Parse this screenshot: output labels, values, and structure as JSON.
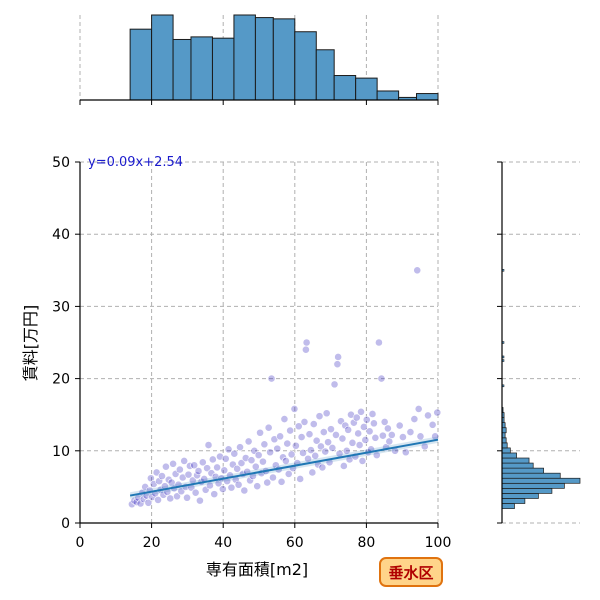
{
  "chart_data": {
    "type": "scatter",
    "xlabel": "専有面積[m2]",
    "ylabel": "賃料[万円]",
    "xlim": [
      0,
      100
    ],
    "ylim": [
      0,
      50
    ],
    "xticks": [
      0,
      20,
      40,
      60,
      80,
      100
    ],
    "yticks": [
      0,
      10,
      20,
      30,
      40,
      50
    ],
    "grid": true,
    "annotation": "y=0.09x+2.54",
    "badge": "垂水区",
    "regression": {
      "slope": 0.09,
      "intercept": 2.54,
      "x_range": [
        14,
        100
      ]
    },
    "point_color": "#3a2fc0",
    "line_color": "#1f77b4",
    "hist_color": "#5599c7",
    "x_hist": {
      "bins": [
        [
          14,
          20
        ],
        [
          20,
          26
        ],
        [
          26,
          31
        ],
        [
          31,
          37
        ],
        [
          37,
          43
        ],
        [
          43,
          49
        ],
        [
          49,
          54
        ],
        [
          54,
          60
        ],
        [
          60,
          66
        ],
        [
          66,
          71
        ],
        [
          71,
          77
        ],
        [
          77,
          83
        ],
        [
          83,
          89
        ],
        [
          89,
          94
        ],
        [
          94,
          100
        ]
      ],
      "counts": [
        55,
        66,
        47,
        49,
        48,
        66,
        64,
        63,
        53,
        39,
        19,
        17,
        7,
        2,
        5
      ]
    },
    "y_hist": {
      "bins": [
        [
          2,
          2.7
        ],
        [
          2.7,
          3.4
        ],
        [
          3.4,
          4.1
        ],
        [
          4.1,
          4.8
        ],
        [
          4.8,
          5.5
        ],
        [
          5.5,
          6.2
        ],
        [
          6.2,
          6.9
        ],
        [
          6.9,
          7.6
        ],
        [
          7.6,
          8.3
        ],
        [
          8.3,
          9.0
        ],
        [
          9.0,
          9.7
        ],
        [
          9.7,
          10.4
        ],
        [
          10.4,
          11.1
        ],
        [
          11.1,
          11.8
        ],
        [
          11.8,
          12.5
        ],
        [
          12.5,
          13.2
        ],
        [
          13.2,
          13.9
        ],
        [
          13.9,
          14.6
        ],
        [
          14.6,
          15.3
        ],
        [
          15.3,
          16
        ]
      ],
      "counts": [
        12,
        22,
        35,
        48,
        60,
        75,
        56,
        40,
        30,
        26,
        14,
        8,
        5,
        4,
        3,
        4,
        3,
        2,
        2,
        1
      ]
    },
    "y_hist_outliers": [
      19,
      22.5,
      23,
      25,
      35
    ],
    "points": [
      [
        14.5,
        2.6
      ],
      [
        15.2,
        3.1
      ],
      [
        15.8,
        2.9
      ],
      [
        16.3,
        3.5
      ],
      [
        16.9,
        2.7
      ],
      [
        17.4,
        4.2
      ],
      [
        17.8,
        3.3
      ],
      [
        18.2,
        5.0
      ],
      [
        18.6,
        3.8
      ],
      [
        19.1,
        2.8
      ],
      [
        19.5,
        4.5
      ],
      [
        19.8,
        6.2
      ],
      [
        20.2,
        3.6
      ],
      [
        20.6,
        5.4
      ],
      [
        21.0,
        4.1
      ],
      [
        21.4,
        7.0
      ],
      [
        21.8,
        3.2
      ],
      [
        22.1,
        5.8
      ],
      [
        22.5,
        4.6
      ],
      [
        22.9,
        6.5
      ],
      [
        23.3,
        3.9
      ],
      [
        23.7,
        5.1
      ],
      [
        24.0,
        7.8
      ],
      [
        24.4,
        4.3
      ],
      [
        24.8,
        6.0
      ],
      [
        25.2,
        3.4
      ],
      [
        25.6,
        5.6
      ],
      [
        26.0,
        8.2
      ],
      [
        26.3,
        4.8
      ],
      [
        26.7,
        6.8
      ],
      [
        27.1,
        3.7
      ],
      [
        27.5,
        5.3
      ],
      [
        27.9,
        7.4
      ],
      [
        28.3,
        4.4
      ],
      [
        28.7,
        6.3
      ],
      [
        29.1,
        8.6
      ],
      [
        29.5,
        5.0
      ],
      [
        29.9,
        3.5
      ],
      [
        30.3,
        6.7
      ],
      [
        30.7,
        7.9
      ],
      [
        31.1,
        4.9
      ],
      [
        31.5,
        5.9
      ],
      [
        31.9,
        8.0
      ],
      [
        32.3,
        4.2
      ],
      [
        32.7,
        6.6
      ],
      [
        33.1,
        7.2
      ],
      [
        33.5,
        3.1
      ],
      [
        33.9,
        5.7
      ],
      [
        34.3,
        8.4
      ],
      [
        34.7,
        6.1
      ],
      [
        35.1,
        4.6
      ],
      [
        35.5,
        7.6
      ],
      [
        35.9,
        10.8
      ],
      [
        36.3,
        5.2
      ],
      [
        36.7,
        6.9
      ],
      [
        37.1,
        8.8
      ],
      [
        37.5,
        4.0
      ],
      [
        37.9,
        6.4
      ],
      [
        38.3,
        7.7
      ],
      [
        38.7,
        5.5
      ],
      [
        39.1,
        9.2
      ],
      [
        39.5,
        6.2
      ],
      [
        39.9,
        4.7
      ],
      [
        40.3,
        7.3
      ],
      [
        40.7,
        8.9
      ],
      [
        41.1,
        5.8
      ],
      [
        41.5,
        10.2
      ],
      [
        41.9,
        6.6
      ],
      [
        42.3,
        4.9
      ],
      [
        42.7,
        8.1
      ],
      [
        43.1,
        9.6
      ],
      [
        43.5,
        6.0
      ],
      [
        43.9,
        7.5
      ],
      [
        44.3,
        5.3
      ],
      [
        44.7,
        10.5
      ],
      [
        45.1,
        8.3
      ],
      [
        45.5,
        6.8
      ],
      [
        45.9,
        4.5
      ],
      [
        46.3,
        9.0
      ],
      [
        46.7,
        7.1
      ],
      [
        47.1,
        11.3
      ],
      [
        47.5,
        5.9
      ],
      [
        47.9,
        8.7
      ],
      [
        48.3,
        6.5
      ],
      [
        48.7,
        10.0
      ],
      [
        49.1,
        7.8
      ],
      [
        49.5,
        5.1
      ],
      [
        49.9,
        9.4
      ],
      [
        50.3,
        12.5
      ],
      [
        50.7,
        6.9
      ],
      [
        51.1,
        8.5
      ],
      [
        51.5,
        10.9
      ],
      [
        51.9,
        7.2
      ],
      [
        52.3,
        5.6
      ],
      [
        52.7,
        13.2
      ],
      [
        53.1,
        9.8
      ],
      [
        53.5,
        20.0
      ],
      [
        53.9,
        6.3
      ],
      [
        54.3,
        11.6
      ],
      [
        54.7,
        8.0
      ],
      [
        55.1,
        10.3
      ],
      [
        55.5,
        7.4
      ],
      [
        55.9,
        12.0
      ],
      [
        56.3,
        5.7
      ],
      [
        56.7,
        9.1
      ],
      [
        57.1,
        14.4
      ],
      [
        57.5,
        8.6
      ],
      [
        57.9,
        11.0
      ],
      [
        58.3,
        6.8
      ],
      [
        58.7,
        12.8
      ],
      [
        59.1,
        9.5
      ],
      [
        59.5,
        7.6
      ],
      [
        59.9,
        15.8
      ],
      [
        60.3,
        10.7
      ],
      [
        60.7,
        8.3
      ],
      [
        61.1,
        13.4
      ],
      [
        61.5,
        6.1
      ],
      [
        61.9,
        11.9
      ],
      [
        62.3,
        9.7
      ],
      [
        62.7,
        14.0
      ],
      [
        63.1,
        24.0
      ],
      [
        63.3,
        25.0
      ],
      [
        63.7,
        8.9
      ],
      [
        64.1,
        12.3
      ],
      [
        64.5,
        10.1
      ],
      [
        64.9,
        7.0
      ],
      [
        65.3,
        13.7
      ],
      [
        65.7,
        9.3
      ],
      [
        66.1,
        11.4
      ],
      [
        66.5,
        8.1
      ],
      [
        66.9,
        14.8
      ],
      [
        67.3,
        10.6
      ],
      [
        67.7,
        7.7
      ],
      [
        68.1,
        12.6
      ],
      [
        68.5,
        9.9
      ],
      [
        68.9,
        15.2
      ],
      [
        69.3,
        11.2
      ],
      [
        69.7,
        8.4
      ],
      [
        70.1,
        13.0
      ],
      [
        70.5,
        10.4
      ],
      [
        71.1,
        19.2
      ],
      [
        71.5,
        12.2
      ],
      [
        71.9,
        22.0
      ],
      [
        72.1,
        23.0
      ],
      [
        72.5,
        9.6
      ],
      [
        72.9,
        14.1
      ],
      [
        73.3,
        11.7
      ],
      [
        73.7,
        7.9
      ],
      [
        74.1,
        13.5
      ],
      [
        74.5,
        10.0
      ],
      [
        74.9,
        12.9
      ],
      [
        75.3,
        8.8
      ],
      [
        75.7,
        15.0
      ],
      [
        76.1,
        11.1
      ],
      [
        76.5,
        13.9
      ],
      [
        76.9,
        9.2
      ],
      [
        77.3,
        14.6
      ],
      [
        77.7,
        12.4
      ],
      [
        78.1,
        10.8
      ],
      [
        78.5,
        15.4
      ],
      [
        78.9,
        8.6
      ],
      [
        79.3,
        13.3
      ],
      [
        79.7,
        11.5
      ],
      [
        80.1,
        14.3
      ],
      [
        80.5,
        9.8
      ],
      [
        80.9,
        12.7
      ],
      [
        81.3,
        10.2
      ],
      [
        81.7,
        15.1
      ],
      [
        82.1,
        13.8
      ],
      [
        82.5,
        11.8
      ],
      [
        82.9,
        9.4
      ],
      [
        83.5,
        25.0
      ],
      [
        84.2,
        20.0
      ],
      [
        84.6,
        12.1
      ],
      [
        85.1,
        14.0
      ],
      [
        85.5,
        10.5
      ],
      [
        86.0,
        13.1
      ],
      [
        86.4,
        11.3
      ],
      [
        87.1,
        12.2
      ],
      [
        88.0,
        10.0
      ],
      [
        89.3,
        13.5
      ],
      [
        90.2,
        11.9
      ],
      [
        91.0,
        9.8
      ],
      [
        92.3,
        12.6
      ],
      [
        93.4,
        14.4
      ],
      [
        94.2,
        35.0
      ],
      [
        94.6,
        15.8
      ],
      [
        95.1,
        12.0
      ],
      [
        96.3,
        10.6
      ],
      [
        97.2,
        14.9
      ],
      [
        98.5,
        13.6
      ],
      [
        99.2,
        12.0
      ],
      [
        99.8,
        15.3
      ]
    ]
  }
}
